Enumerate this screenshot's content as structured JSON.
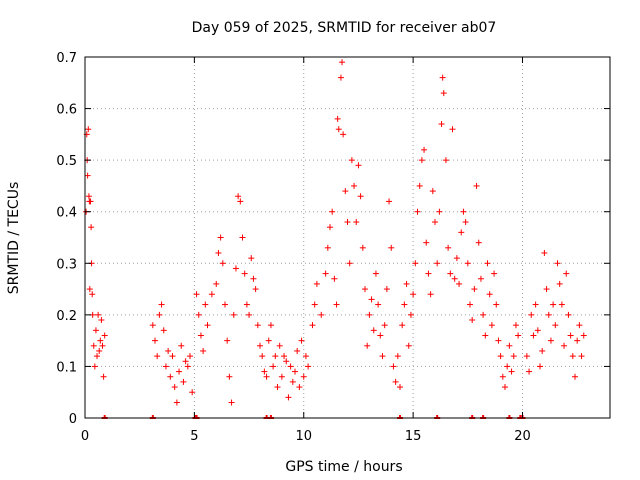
{
  "chart_data": {
    "type": "scatter",
    "title": "Day 059 of 2025, SRMTID for receiver ab07",
    "xlabel": "GPS time / hours",
    "ylabel": "SRMTID / TECUs",
    "xlim": [
      0,
      24
    ],
    "ylim": [
      0,
      0.7
    ],
    "grid": true,
    "marker": "+",
    "color": "#ff0000",
    "xticks": [
      0,
      5,
      10,
      15,
      20
    ],
    "xtick_labels": [
      "0",
      "5",
      "10",
      "15",
      "20"
    ],
    "yticks": [
      0,
      0.1,
      0.2,
      0.3,
      0.4,
      0.5,
      0.6,
      0.7
    ],
    "ytick_labels": [
      "0",
      "0.1",
      "0.2",
      "0.3",
      "0.4",
      "0.5",
      "0.6",
      "0.7"
    ],
    "series": [
      {
        "name": "SRMTID",
        "points": [
          [
            0.05,
            0.4
          ],
          [
            0.08,
            0.55
          ],
          [
            0.1,
            0.5
          ],
          [
            0.12,
            0.47
          ],
          [
            0.15,
            0.56
          ],
          [
            0.18,
            0.43
          ],
          [
            0.2,
            0.42
          ],
          [
            0.22,
            0.25
          ],
          [
            0.25,
            0.42
          ],
          [
            0.28,
            0.37
          ],
          [
            0.3,
            0.3
          ],
          [
            0.33,
            0.24
          ],
          [
            0.35,
            0.2
          ],
          [
            0.4,
            0.14
          ],
          [
            0.45,
            0.1
          ],
          [
            0.5,
            0.17
          ],
          [
            0.55,
            0.12
          ],
          [
            0.6,
            0.2
          ],
          [
            0.65,
            0.13
          ],
          [
            0.7,
            0.15
          ],
          [
            0.75,
            0.19
          ],
          [
            0.8,
            0.14
          ],
          [
            0.85,
            0.08
          ],
          [
            0.9,
            0.16
          ],
          [
            3.1,
            0.18
          ],
          [
            3.2,
            0.15
          ],
          [
            3.3,
            0.12
          ],
          [
            3.4,
            0.2
          ],
          [
            3.5,
            0.22
          ],
          [
            3.6,
            0.17
          ],
          [
            3.7,
            0.1
          ],
          [
            3.8,
            0.13
          ],
          [
            3.9,
            0.08
          ],
          [
            4.0,
            0.12
          ],
          [
            4.1,
            0.06
          ],
          [
            4.2,
            0.03
          ],
          [
            4.3,
            0.09
          ],
          [
            4.4,
            0.14
          ],
          [
            4.5,
            0.07
          ],
          [
            4.6,
            0.11
          ],
          [
            4.7,
            0.1
          ],
          [
            4.8,
            0.12
          ],
          [
            4.9,
            0.05
          ],
          [
            5.1,
            0.24
          ],
          [
            5.2,
            0.2
          ],
          [
            5.3,
            0.16
          ],
          [
            5.4,
            0.13
          ],
          [
            5.5,
            0.22
          ],
          [
            5.6,
            0.18
          ],
          [
            5.8,
            0.24
          ],
          [
            6.0,
            0.26
          ],
          [
            6.1,
            0.32
          ],
          [
            6.2,
            0.35
          ],
          [
            6.3,
            0.3
          ],
          [
            6.4,
            0.22
          ],
          [
            6.5,
            0.15
          ],
          [
            6.6,
            0.08
          ],
          [
            6.7,
            0.03
          ],
          [
            6.8,
            0.2
          ],
          [
            6.9,
            0.29
          ],
          [
            7.0,
            0.43
          ],
          [
            7.1,
            0.42
          ],
          [
            7.2,
            0.35
          ],
          [
            7.3,
            0.28
          ],
          [
            7.4,
            0.22
          ],
          [
            7.5,
            0.2
          ],
          [
            7.6,
            0.31
          ],
          [
            7.7,
            0.27
          ],
          [
            7.8,
            0.25
          ],
          [
            7.9,
            0.18
          ],
          [
            8.0,
            0.14
          ],
          [
            8.1,
            0.12
          ],
          [
            8.2,
            0.09
          ],
          [
            8.3,
            0.08
          ],
          [
            8.4,
            0.15
          ],
          [
            8.5,
            0.18
          ],
          [
            8.6,
            0.1
          ],
          [
            8.7,
            0.12
          ],
          [
            8.8,
            0.06
          ],
          [
            8.9,
            0.14
          ],
          [
            9.0,
            0.08
          ],
          [
            9.1,
            0.12
          ],
          [
            9.2,
            0.11
          ],
          [
            9.3,
            0.04
          ],
          [
            9.4,
            0.1
          ],
          [
            9.5,
            0.07
          ],
          [
            9.6,
            0.09
          ],
          [
            9.7,
            0.13
          ],
          [
            9.8,
            0.06
          ],
          [
            9.9,
            0.15
          ],
          [
            10.0,
            0.08
          ],
          [
            10.1,
            0.12
          ],
          [
            10.2,
            0.1
          ],
          [
            10.4,
            0.18
          ],
          [
            10.5,
            0.22
          ],
          [
            10.6,
            0.26
          ],
          [
            10.8,
            0.2
          ],
          [
            11.0,
            0.28
          ],
          [
            11.1,
            0.33
          ],
          [
            11.2,
            0.37
          ],
          [
            11.3,
            0.4
          ],
          [
            11.4,
            0.27
          ],
          [
            11.5,
            0.22
          ],
          [
            11.55,
            0.58
          ],
          [
            11.6,
            0.56
          ],
          [
            11.7,
            0.66
          ],
          [
            11.75,
            0.69
          ],
          [
            11.8,
            0.55
          ],
          [
            11.9,
            0.44
          ],
          [
            12.0,
            0.38
          ],
          [
            12.1,
            0.3
          ],
          [
            12.2,
            0.5
          ],
          [
            12.3,
            0.45
          ],
          [
            12.4,
            0.38
          ],
          [
            12.5,
            0.49
          ],
          [
            12.6,
            0.43
          ],
          [
            12.7,
            0.33
          ],
          [
            12.8,
            0.25
          ],
          [
            12.9,
            0.14
          ],
          [
            13.0,
            0.2
          ],
          [
            13.1,
            0.23
          ],
          [
            13.2,
            0.17
          ],
          [
            13.3,
            0.28
          ],
          [
            13.4,
            0.22
          ],
          [
            13.5,
            0.16
          ],
          [
            13.6,
            0.12
          ],
          [
            13.7,
            0.18
          ],
          [
            13.8,
            0.25
          ],
          [
            13.9,
            0.42
          ],
          [
            14.0,
            0.33
          ],
          [
            14.1,
            0.1
          ],
          [
            14.2,
            0.07
          ],
          [
            14.3,
            0.12
          ],
          [
            14.4,
            0.06
          ],
          [
            14.5,
            0.18
          ],
          [
            14.6,
            0.22
          ],
          [
            14.7,
            0.26
          ],
          [
            14.8,
            0.14
          ],
          [
            14.9,
            0.2
          ],
          [
            15.0,
            0.24
          ],
          [
            15.1,
            0.3
          ],
          [
            15.2,
            0.4
          ],
          [
            15.3,
            0.45
          ],
          [
            15.4,
            0.5
          ],
          [
            15.5,
            0.52
          ],
          [
            15.6,
            0.34
          ],
          [
            15.7,
            0.28
          ],
          [
            15.8,
            0.24
          ],
          [
            15.9,
            0.44
          ],
          [
            16.0,
            0.38
          ],
          [
            16.1,
            0.3
          ],
          [
            16.2,
            0.4
          ],
          [
            16.3,
            0.57
          ],
          [
            16.35,
            0.66
          ],
          [
            16.4,
            0.63
          ],
          [
            16.5,
            0.5
          ],
          [
            16.6,
            0.33
          ],
          [
            16.7,
            0.28
          ],
          [
            16.8,
            0.56
          ],
          [
            16.9,
            0.27
          ],
          [
            17.0,
            0.31
          ],
          [
            17.1,
            0.26
          ],
          [
            17.2,
            0.36
          ],
          [
            17.3,
            0.4
          ],
          [
            17.4,
            0.38
          ],
          [
            17.5,
            0.3
          ],
          [
            17.6,
            0.22
          ],
          [
            17.7,
            0.19
          ],
          [
            17.8,
            0.25
          ],
          [
            17.9,
            0.45
          ],
          [
            18.0,
            0.34
          ],
          [
            18.1,
            0.27
          ],
          [
            18.2,
            0.2
          ],
          [
            18.3,
            0.16
          ],
          [
            18.4,
            0.3
          ],
          [
            18.5,
            0.24
          ],
          [
            18.6,
            0.18
          ],
          [
            18.7,
            0.28
          ],
          [
            18.8,
            0.22
          ],
          [
            18.9,
            0.15
          ],
          [
            19.0,
            0.12
          ],
          [
            19.1,
            0.08
          ],
          [
            19.2,
            0.06
          ],
          [
            19.3,
            0.1
          ],
          [
            19.4,
            0.14
          ],
          [
            19.5,
            0.09
          ],
          [
            19.6,
            0.12
          ],
          [
            19.7,
            0.18
          ],
          [
            19.8,
            0.16
          ],
          [
            20.2,
            0.12
          ],
          [
            20.3,
            0.09
          ],
          [
            20.4,
            0.2
          ],
          [
            20.5,
            0.16
          ],
          [
            20.6,
            0.22
          ],
          [
            20.7,
            0.17
          ],
          [
            20.8,
            0.1
          ],
          [
            20.9,
            0.13
          ],
          [
            21.0,
            0.32
          ],
          [
            21.1,
            0.25
          ],
          [
            21.2,
            0.2
          ],
          [
            21.3,
            0.15
          ],
          [
            21.4,
            0.22
          ],
          [
            21.5,
            0.18
          ],
          [
            21.6,
            0.3
          ],
          [
            21.7,
            0.26
          ],
          [
            21.8,
            0.22
          ],
          [
            21.9,
            0.14
          ],
          [
            22.0,
            0.28
          ],
          [
            22.1,
            0.2
          ],
          [
            22.2,
            0.16
          ],
          [
            22.3,
            0.12
          ],
          [
            22.4,
            0.08
          ],
          [
            22.5,
            0.15
          ],
          [
            22.6,
            0.18
          ],
          [
            22.7,
            0.12
          ],
          [
            22.8,
            0.16
          ]
        ]
      }
    ],
    "zero_markers": [
      0.9,
      3.1,
      5.05,
      5.1,
      8.3,
      8.5,
      14.4,
      16.1,
      17.7,
      18.2,
      19.4,
      19.9,
      20.0
    ]
  }
}
